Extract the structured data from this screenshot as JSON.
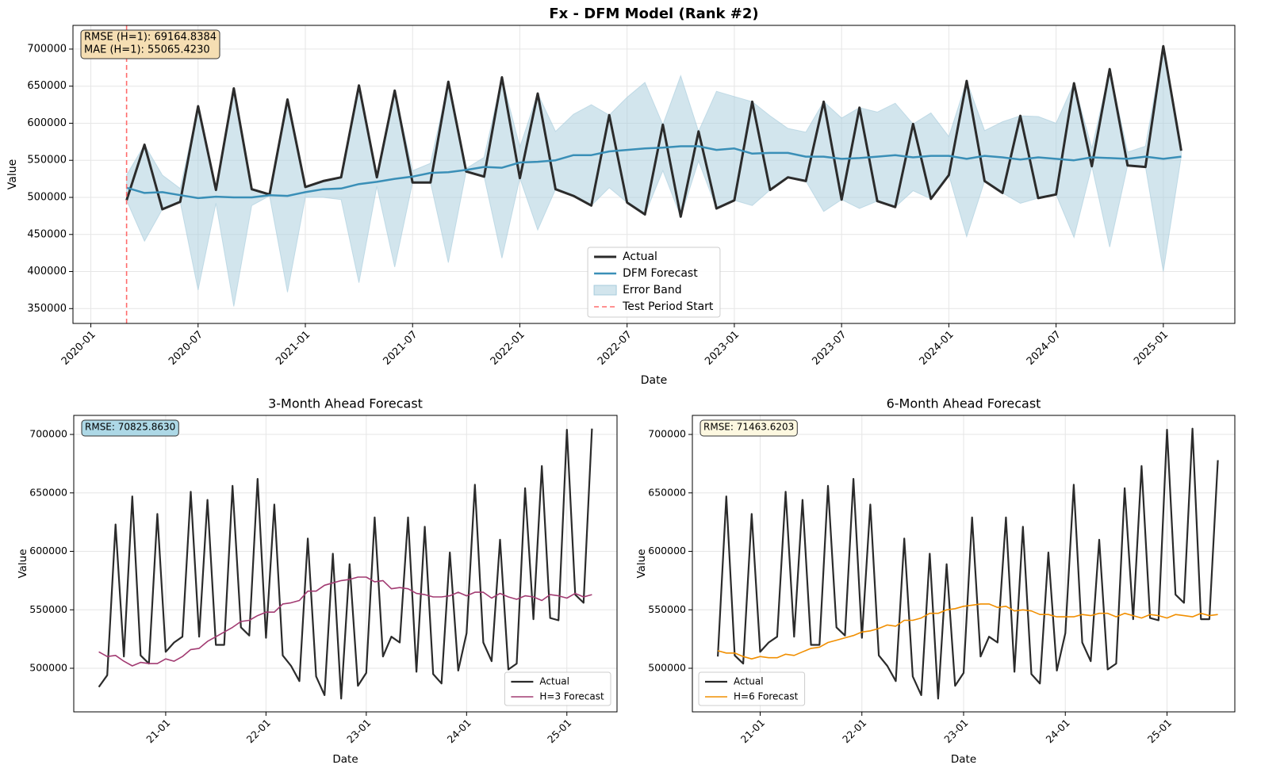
{
  "chart_data": [
    {
      "type": "line",
      "title": "Fx - DFM Model (Rank #2)",
      "xlabel": "Date",
      "ylabel": "Value",
      "x": [
        "2020-03",
        "2020-04",
        "2020-05",
        "2020-06",
        "2020-07",
        "2020-08",
        "2020-09",
        "2020-10",
        "2020-11",
        "2020-12",
        "2021-01",
        "2021-02",
        "2021-03",
        "2021-04",
        "2021-05",
        "2021-06",
        "2021-07",
        "2021-08",
        "2021-09",
        "2021-10",
        "2021-11",
        "2021-12",
        "2022-01",
        "2022-02",
        "2022-03",
        "2022-04",
        "2022-05",
        "2022-06",
        "2022-07",
        "2022-08",
        "2022-09",
        "2022-10",
        "2022-11",
        "2022-12",
        "2023-01",
        "2023-02",
        "2023-03",
        "2023-04",
        "2023-05",
        "2023-06",
        "2023-07",
        "2023-08",
        "2023-09",
        "2023-10",
        "2023-11",
        "2023-12",
        "2024-01",
        "2024-02",
        "2024-03",
        "2024-04",
        "2024-05",
        "2024-06",
        "2024-07",
        "2024-08",
        "2024-09",
        "2024-10",
        "2024-11",
        "2024-12",
        "2025-01",
        "2025-02"
      ],
      "series": [
        {
          "name": "Actual",
          "color": "#2b2b2b",
          "width": 3,
          "values": [
            496000,
            571000,
            484000,
            494000,
            623000,
            510000,
            647000,
            511000,
            504000,
            632000,
            514000,
            522000,
            527000,
            651000,
            527000,
            644000,
            520000,
            520000,
            656000,
            535000,
            528000,
            662000,
            526000,
            640000,
            511000,
            502000,
            489000,
            611000,
            493000,
            477000,
            598000,
            474000,
            589000,
            485000,
            496000,
            629000,
            510000,
            527000,
            522000,
            629000,
            497000,
            621000,
            495000,
            487000,
            599000,
            498000,
            530000,
            657000,
            522000,
            506000,
            610000,
            499000,
            504000,
            654000,
            542000,
            673000,
            543000,
            541000,
            704000,
            563000
          ]
        },
        {
          "name": "DFM Forecast",
          "color": "#3a8fb7",
          "width": 2.5,
          "values": [
            513000,
            506000,
            507000,
            503000,
            499000,
            501000,
            500000,
            500000,
            503000,
            502000,
            507000,
            511000,
            512000,
            518000,
            521000,
            525000,
            528000,
            533000,
            534000,
            537000,
            541000,
            540000,
            547000,
            548000,
            550000,
            557000,
            557000,
            562000,
            564000,
            566000,
            567000,
            569000,
            569000,
            564000,
            566000,
            559000,
            560000,
            560000,
            555000,
            555000,
            552000,
            553000,
            555000,
            557000,
            554000,
            556000,
            556000,
            552000,
            556000,
            554000,
            551000,
            554000,
            552000,
            550000,
            554000,
            553000,
            552000,
            555000,
            552000,
            555000
          ]
        },
        {
          "name": "Error Band",
          "type": "band",
          "color": "#a6cbdc",
          "lower": [
            496000,
            441000,
            484000,
            494000,
            375000,
            492000,
            353000,
            489000,
            502000,
            372000,
            500000,
            500000,
            497000,
            385000,
            515000,
            406000,
            520000,
            520000,
            412000,
            535000,
            528000,
            418000,
            526000,
            456000,
            511000,
            502000,
            489000,
            513000,
            493000,
            477000,
            536000,
            474000,
            549000,
            485000,
            496000,
            489000,
            510000,
            527000,
            522000,
            481000,
            497000,
            485000,
            495000,
            487000,
            509000,
            498000,
            530000,
            447000,
            522000,
            506000,
            492000,
            499000,
            504000,
            446000,
            542000,
            433000,
            543000,
            541000,
            400000,
            555000
          ],
          "upper": [
            530000,
            571000,
            530000,
            512000,
            623000,
            510000,
            647000,
            511000,
            504000,
            632000,
            514000,
            522000,
            527000,
            651000,
            527000,
            644000,
            536000,
            546000,
            656000,
            539000,
            554000,
            662000,
            568000,
            640000,
            589000,
            612000,
            625000,
            611000,
            635000,
            655000,
            598000,
            664000,
            589000,
            643000,
            636000,
            629000,
            610000,
            593000,
            588000,
            629000,
            607000,
            621000,
            615000,
            627000,
            599000,
            614000,
            582000,
            657000,
            590000,
            602000,
            610000,
            609000,
            600000,
            654000,
            566000,
            673000,
            561000,
            569000,
            704000,
            571000
          ]
        }
      ],
      "vlines": [
        {
          "name": "Test Period Start",
          "x": "2020-03",
          "color": "#ff6b6b"
        }
      ],
      "annotation": {
        "lines": [
          "RMSE (H=1): 69164.8384",
          "MAE (H=1): 55065.4230"
        ],
        "color": "#f5deb3"
      },
      "xlim": [
        "2019-12",
        "2025-05"
      ],
      "ylim": [
        330000,
        732000
      ],
      "xticks": [
        "2020-01",
        "2020-07",
        "2021-01",
        "2021-07",
        "2022-01",
        "2022-07",
        "2023-01",
        "2023-07",
        "2024-01",
        "2024-07",
        "2025-01"
      ],
      "yticks": [
        350000,
        400000,
        450000,
        500000,
        550000,
        600000,
        650000,
        700000
      ],
      "grid": true,
      "legend": "lower center"
    },
    {
      "type": "line",
      "title": "3-Month Ahead Forecast",
      "xlabel": "Date",
      "ylabel": "Value",
      "x": [
        "2020-05",
        "2020-06",
        "2020-07",
        "2020-08",
        "2020-09",
        "2020-10",
        "2020-11",
        "2020-12",
        "2021-01",
        "2021-02",
        "2021-03",
        "2021-04",
        "2021-05",
        "2021-06",
        "2021-07",
        "2021-08",
        "2021-09",
        "2021-10",
        "2021-11",
        "2021-12",
        "2022-01",
        "2022-02",
        "2022-03",
        "2022-04",
        "2022-05",
        "2022-06",
        "2022-07",
        "2022-08",
        "2022-09",
        "2022-10",
        "2022-11",
        "2022-12",
        "2023-01",
        "2023-02",
        "2023-03",
        "2023-04",
        "2023-05",
        "2023-06",
        "2023-07",
        "2023-08",
        "2023-09",
        "2023-10",
        "2023-11",
        "2023-12",
        "2024-01",
        "2024-02",
        "2024-03",
        "2024-04",
        "2024-05",
        "2024-06",
        "2024-07",
        "2024-08",
        "2024-09",
        "2024-10",
        "2024-11",
        "2024-12",
        "2025-01",
        "2025-02",
        "2025-03",
        "2025-04"
      ],
      "series": [
        {
          "name": "Actual",
          "color": "#2b2b2b",
          "width": 2.2,
          "values": [
            484000,
            494000,
            623000,
            510000,
            647000,
            511000,
            504000,
            632000,
            514000,
            522000,
            527000,
            651000,
            527000,
            644000,
            520000,
            520000,
            656000,
            535000,
            528000,
            662000,
            526000,
            640000,
            511000,
            502000,
            489000,
            611000,
            493000,
            477000,
            598000,
            474000,
            589000,
            485000,
            496000,
            629000,
            510000,
            527000,
            522000,
            629000,
            497000,
            621000,
            495000,
            487000,
            599000,
            498000,
            530000,
            657000,
            522000,
            506000,
            610000,
            499000,
            504000,
            654000,
            542000,
            673000,
            543000,
            541000,
            704000,
            563000,
            556000,
            705000
          ]
        },
        {
          "name": "H=3 Forecast",
          "color": "#a23b72",
          "width": 1.6,
          "values": [
            514000,
            510000,
            511000,
            506000,
            502000,
            505000,
            504000,
            504000,
            508000,
            506000,
            510000,
            516000,
            517000,
            523000,
            527000,
            531000,
            535000,
            540000,
            541000,
            545000,
            548000,
            548000,
            555000,
            556000,
            558000,
            566000,
            566000,
            571000,
            573000,
            575000,
            576000,
            578000,
            578000,
            574000,
            575000,
            568000,
            569000,
            568000,
            564000,
            563000,
            561000,
            561000,
            562000,
            565000,
            562000,
            565000,
            565000,
            560000,
            564000,
            561000,
            559000,
            562000,
            561000,
            558000,
            563000,
            562000,
            560000,
            564000,
            561000,
            563000
          ]
        }
      ],
      "annotation": {
        "lines": [
          "RMSE: 70825.8630"
        ],
        "color": "#add8e6"
      },
      "xlim": [
        "2020-02",
        "2025-07"
      ],
      "ylim": [
        462700,
        716300
      ],
      "xticks": [
        {
          "value": "2021-01",
          "label": "21-01"
        },
        {
          "value": "2022-01",
          "label": "22-01"
        },
        {
          "value": "2023-01",
          "label": "23-01"
        },
        {
          "value": "2024-01",
          "label": "24-01"
        },
        {
          "value": "2025-01",
          "label": "25-01"
        }
      ],
      "yticks": [
        500000,
        550000,
        600000,
        650000,
        700000
      ],
      "grid": true,
      "legend": "lower right"
    },
    {
      "type": "line",
      "title": "6-Month Ahead Forecast",
      "xlabel": "Date",
      "ylabel": "Value",
      "x": [
        "2020-08",
        "2020-09",
        "2020-10",
        "2020-11",
        "2020-12",
        "2021-01",
        "2021-02",
        "2021-03",
        "2021-04",
        "2021-05",
        "2021-06",
        "2021-07",
        "2021-08",
        "2021-09",
        "2021-10",
        "2021-11",
        "2021-12",
        "2022-01",
        "2022-02",
        "2022-03",
        "2022-04",
        "2022-05",
        "2022-06",
        "2022-07",
        "2022-08",
        "2022-09",
        "2022-10",
        "2022-11",
        "2022-12",
        "2023-01",
        "2023-02",
        "2023-03",
        "2023-04",
        "2023-05",
        "2023-06",
        "2023-07",
        "2023-08",
        "2023-09",
        "2023-10",
        "2023-11",
        "2023-12",
        "2024-01",
        "2024-02",
        "2024-03",
        "2024-04",
        "2024-05",
        "2024-06",
        "2024-07",
        "2024-08",
        "2024-09",
        "2024-10",
        "2024-11",
        "2024-12",
        "2025-01",
        "2025-02",
        "2025-03",
        "2025-04",
        "2025-05",
        "2025-06",
        "2025-07"
      ],
      "series": [
        {
          "name": "Actual",
          "color": "#2b2b2b",
          "width": 2.2,
          "values": [
            510000,
            647000,
            511000,
            504000,
            632000,
            514000,
            522000,
            527000,
            651000,
            527000,
            644000,
            520000,
            520000,
            656000,
            535000,
            528000,
            662000,
            526000,
            640000,
            511000,
            502000,
            489000,
            611000,
            493000,
            477000,
            598000,
            474000,
            589000,
            485000,
            496000,
            629000,
            510000,
            527000,
            522000,
            629000,
            497000,
            621000,
            495000,
            487000,
            599000,
            498000,
            530000,
            657000,
            522000,
            506000,
            610000,
            499000,
            504000,
            654000,
            542000,
            673000,
            543000,
            541000,
            704000,
            563000,
            556000,
            705000,
            542000,
            542000,
            678000
          ]
        },
        {
          "name": "H=6 Forecast",
          "color": "#f18f01",
          "width": 1.6,
          "values": [
            515000,
            513000,
            513000,
            510000,
            508000,
            510000,
            509000,
            509000,
            512000,
            511000,
            514000,
            517000,
            518000,
            522000,
            524000,
            526000,
            528000,
            531000,
            532000,
            534000,
            537000,
            536000,
            541000,
            541000,
            543000,
            547000,
            547000,
            550000,
            551000,
            553000,
            554000,
            555000,
            555000,
            552000,
            553000,
            549000,
            550000,
            549000,
            546000,
            546000,
            544000,
            544000,
            544000,
            546000,
            545000,
            547000,
            547000,
            544000,
            547000,
            545000,
            543000,
            546000,
            545000,
            543000,
            546000,
            545000,
            544000,
            547000,
            545000,
            546000
          ]
        }
      ],
      "annotation": {
        "lines": [
          "RMSE: 71463.6203"
        ],
        "color": "#fdf8e0"
      },
      "xlim": [
        "2020-05",
        "2025-09"
      ],
      "ylim": [
        462700,
        716300
      ],
      "xticks": [
        {
          "value": "2021-01",
          "label": "21-01"
        },
        {
          "value": "2022-01",
          "label": "22-01"
        },
        {
          "value": "2023-01",
          "label": "23-01"
        },
        {
          "value": "2024-01",
          "label": "24-01"
        },
        {
          "value": "2025-01",
          "label": "25-01"
        }
      ],
      "yticks": [
        500000,
        550000,
        600000,
        650000,
        700000
      ],
      "grid": true,
      "legend": "lower left"
    }
  ]
}
